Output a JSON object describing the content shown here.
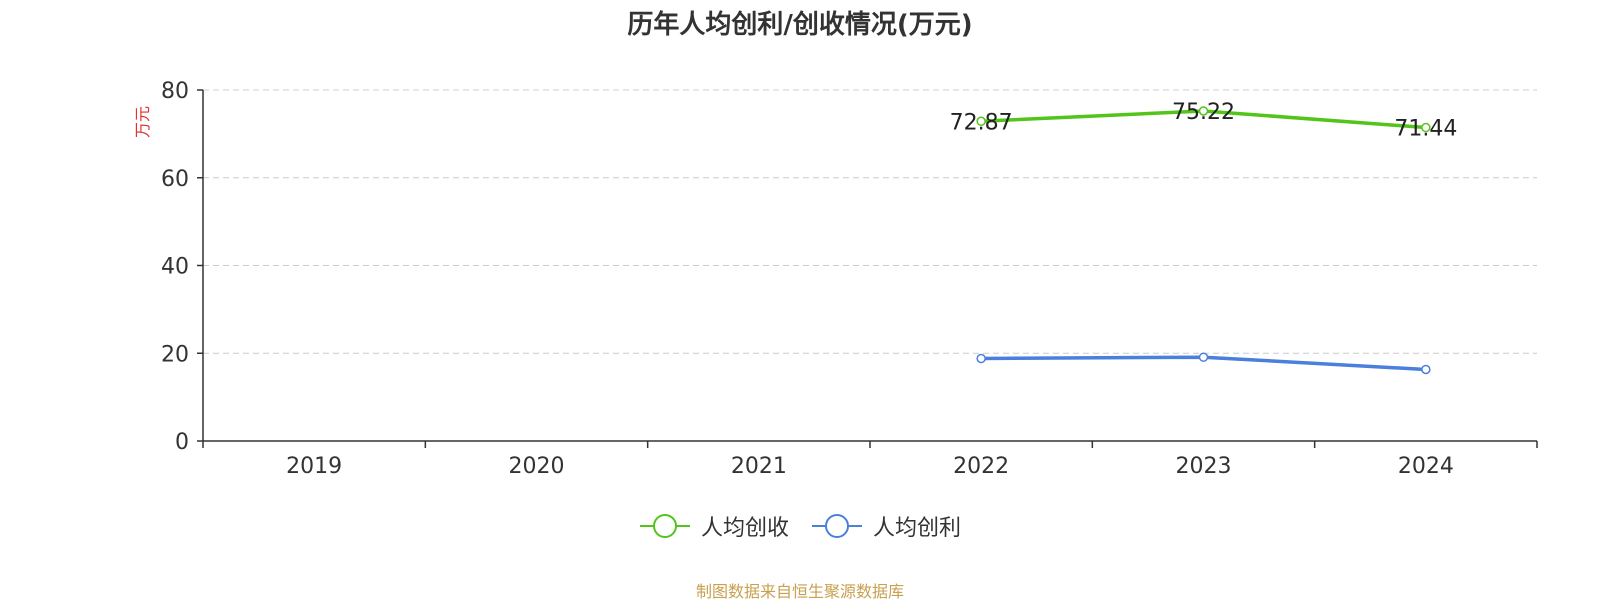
{
  "chart_data": {
    "type": "line",
    "title": "历年人均创利/创收情况(万元)",
    "ylabel": "万元",
    "xlabel": "",
    "categories": [
      "2019",
      "2020",
      "2021",
      "2022",
      "2023",
      "2024"
    ],
    "ylim": [
      0,
      80
    ],
    "yticks": [
      0,
      20,
      40,
      60,
      80
    ],
    "grid": true,
    "legend_position": "bottom",
    "series": [
      {
        "name": "人均创收",
        "color": "#52c41a",
        "values": [
          null,
          null,
          null,
          72.87,
          75.22,
          71.44
        ],
        "labels": [
          "",
          "",
          "",
          "72.87",
          "75.22",
          "71.44"
        ]
      },
      {
        "name": "人均创利",
        "color": "#4a7fdc",
        "values": [
          null,
          null,
          null,
          18.8,
          19.1,
          16.3
        ],
        "labels": [
          "",
          "",
          "",
          "",
          "",
          ""
        ]
      }
    ]
  },
  "source_note": "制图数据来自恒生聚源数据库"
}
